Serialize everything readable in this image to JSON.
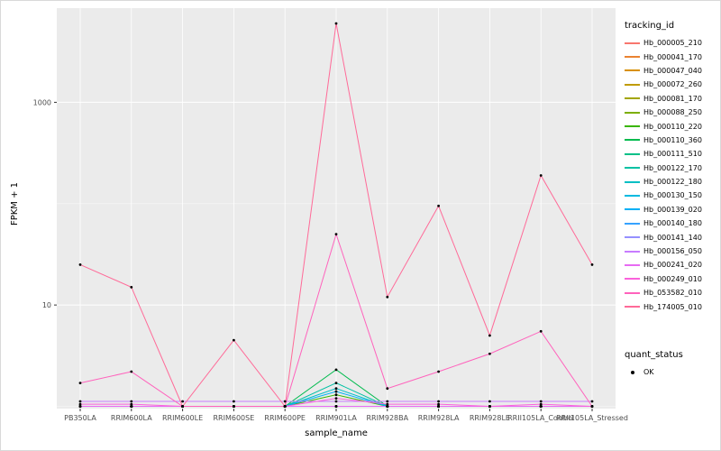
{
  "chart_data": {
    "type": "line",
    "title": "",
    "xlabel": "sample_name",
    "ylabel": "FPKM + 1",
    "y_scale": "log10",
    "ylim": [
      0.95,
      8500
    ],
    "y_ticks": [
      {
        "label": "10",
        "value": 10
      },
      {
        "label": "1000",
        "value": 1000
      }
    ],
    "y_minor": [
      1,
      100
    ],
    "grid": true,
    "panel_bg": "#EBEBEB",
    "grid_color": "#FFFFFF",
    "tick_label_color": "#4D4D4D",
    "point_color": "#000000",
    "legend": {
      "title": "tracking_id",
      "position": "right"
    },
    "quant_legend": {
      "title": "quant_status",
      "items": [
        {
          "label": "OK",
          "symbol": "point",
          "color": "#000000"
        }
      ]
    },
    "categories": [
      "PB350LA",
      "RRIM600LA",
      "RRIM600LE",
      "RRIM600SE",
      "RRIM600PE",
      "RRIM901LA",
      "RRIM928BA",
      "RRIM928LA",
      "RRIM928LE",
      "RRII105LA_Control",
      "RRII105LA_Stressed"
    ],
    "series": [
      {
        "name": "Hb_000005_210",
        "color": "#F8766D",
        "values": [
          1,
          1,
          1,
          1,
          1,
          1,
          1,
          1,
          1,
          1,
          1
        ]
      },
      {
        "name": "Hb_000041_170",
        "color": "#EA8331",
        "values": [
          1,
          1,
          1,
          1,
          1,
          1,
          1,
          1,
          1,
          1,
          1
        ]
      },
      {
        "name": "Hb_000047_040",
        "color": "#D89000",
        "values": [
          1,
          1,
          1,
          1,
          1,
          1,
          1,
          1,
          1,
          1,
          1
        ]
      },
      {
        "name": "Hb_000072_260",
        "color": "#C09B00",
        "values": [
          1,
          1,
          1,
          1,
          1,
          1,
          1,
          1,
          1,
          1,
          1
        ]
      },
      {
        "name": "Hb_000081_170",
        "color": "#A3A500",
        "values": [
          1,
          1,
          1,
          1,
          1,
          1,
          1,
          1,
          1,
          1,
          1
        ]
      },
      {
        "name": "Hb_000088_250",
        "color": "#7CAE00",
        "values": [
          1,
          1,
          1,
          1,
          1,
          1,
          1,
          1,
          1,
          1,
          1
        ]
      },
      {
        "name": "Hb_000110_220",
        "color": "#39B600",
        "values": [
          1,
          1,
          1,
          1,
          1,
          1.3,
          1,
          1,
          1,
          1,
          1
        ]
      },
      {
        "name": "Hb_000110_360",
        "color": "#00BB4E",
        "values": [
          1,
          1,
          1,
          1,
          1,
          2.3,
          1,
          1,
          1,
          1,
          1
        ]
      },
      {
        "name": "Hb_000111_510",
        "color": "#00C087",
        "values": [
          1,
          1,
          1,
          1,
          1,
          1,
          1,
          1,
          1,
          1,
          1
        ]
      },
      {
        "name": "Hb_000122_170",
        "color": "#00C1A3",
        "values": [
          1,
          1,
          1,
          1,
          1,
          1.7,
          1,
          1,
          1,
          1,
          1
        ]
      },
      {
        "name": "Hb_000122_180",
        "color": "#00BFC4",
        "values": [
          1,
          1,
          1,
          1,
          1,
          1.5,
          1,
          1,
          1,
          1,
          1
        ]
      },
      {
        "name": "Hb_000130_150",
        "color": "#00BAE0",
        "values": [
          1,
          1,
          1,
          1,
          1,
          1,
          1,
          1,
          1,
          1,
          1
        ]
      },
      {
        "name": "Hb_000139_020",
        "color": "#00B0F6",
        "values": [
          1,
          1,
          1,
          1,
          1,
          1.4,
          1,
          1,
          1,
          1,
          1
        ]
      },
      {
        "name": "Hb_000140_180",
        "color": "#35A2FF",
        "values": [
          1,
          1,
          1,
          1,
          1,
          1,
          1,
          1,
          1,
          1,
          1
        ]
      },
      {
        "name": "Hb_000141_140",
        "color": "#9590FF",
        "values": [
          1,
          1,
          1,
          1,
          1,
          1,
          1,
          1,
          1,
          1,
          1
        ]
      },
      {
        "name": "Hb_000156_050",
        "color": "#C77CFF",
        "values": [
          1.12,
          1.12,
          1.12,
          1.12,
          1.12,
          1.12,
          1.12,
          1.12,
          1.12,
          1.12,
          1.12
        ]
      },
      {
        "name": "Hb_000241_020",
        "color": "#E76BF3",
        "values": [
          1,
          1,
          1,
          1,
          1,
          1,
          1,
          1,
          1,
          1,
          1
        ]
      },
      {
        "name": "Hb_000249_010",
        "color": "#FA62DB",
        "values": [
          1.05,
          1.05,
          1,
          1,
          1,
          1.2,
          1.05,
          1.05,
          1,
          1.05,
          1
        ]
      },
      {
        "name": "Hb_053582_010",
        "color": "#FF62BC",
        "values": [
          1.7,
          2.2,
          1,
          1,
          1,
          50,
          1.5,
          2.2,
          3.3,
          5.5,
          1
        ]
      },
      {
        "name": "Hb_174005_010",
        "color": "#FF6A98",
        "values": [
          25,
          15,
          1,
          4.5,
          1,
          6000,
          12,
          95,
          5,
          190,
          25
        ]
      }
    ]
  }
}
